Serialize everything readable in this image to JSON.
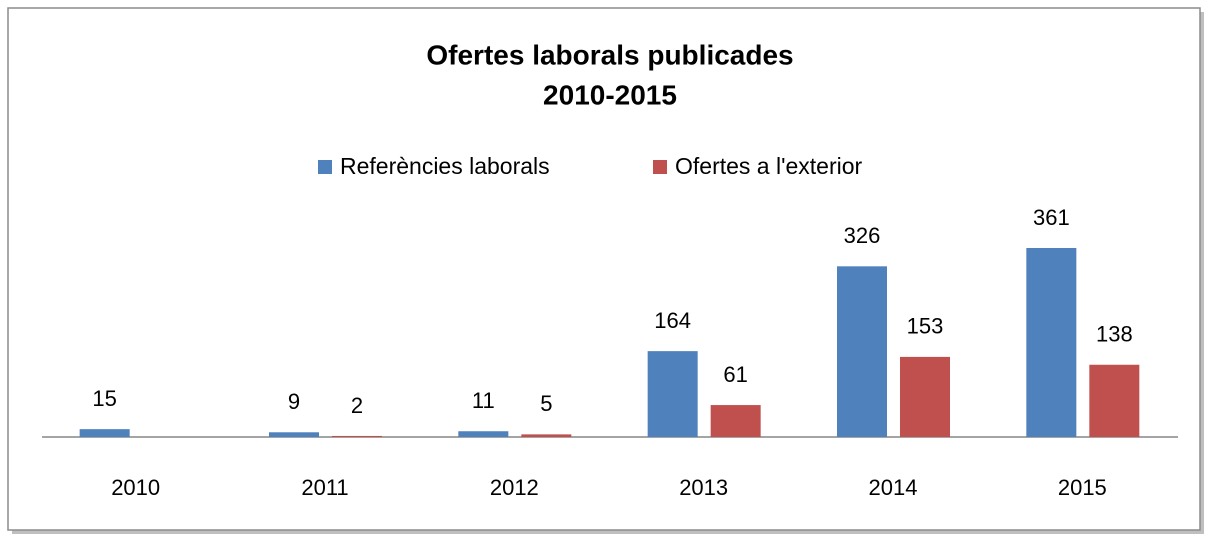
{
  "chart_data": {
    "type": "bar",
    "title": [
      "Ofertes laborals publicades",
      "2010-2015"
    ],
    "categories": [
      "2010",
      "2011",
      "2012",
      "2013",
      "2014",
      "2015"
    ],
    "series": [
      {
        "name": "Referències laborals",
        "color": "#4f81bd",
        "values": [
          15,
          9,
          11,
          164,
          326,
          361
        ]
      },
      {
        "name": "Ofertes a l'exterior",
        "color": "#c0504d",
        "values": [
          null,
          2,
          5,
          61,
          153,
          138
        ]
      }
    ],
    "legend": "top"
  }
}
